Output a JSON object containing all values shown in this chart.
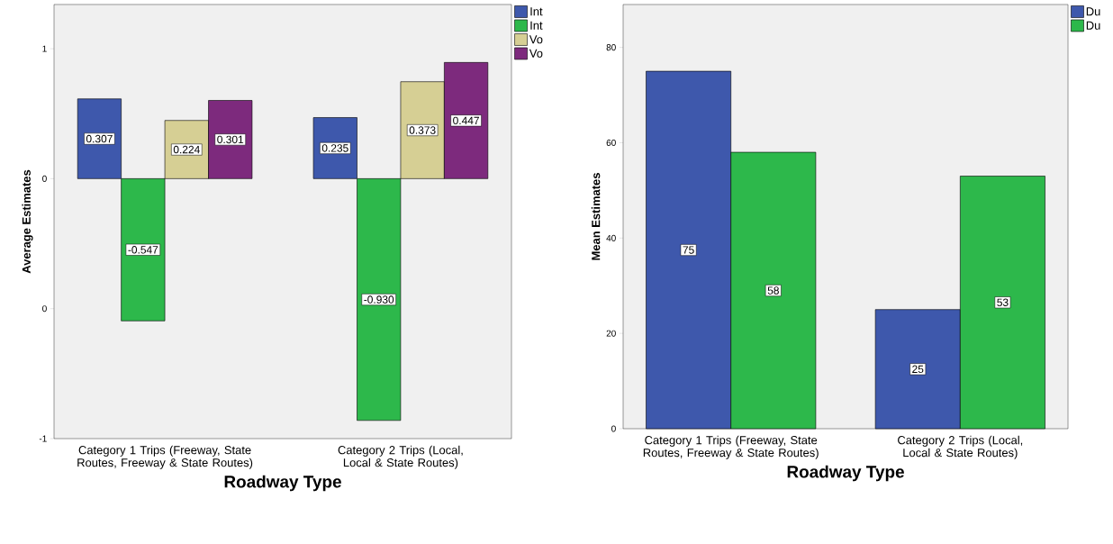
{
  "chart_data": [
    {
      "type": "bar",
      "categories": [
        "Category 1 Trips (Freeway, State Routes, Freeway & State Routes)",
        "Category 2 Trips (Local, Local & State Routes)"
      ],
      "series": [
        {
          "name": "Int",
          "color": "#3e58ac",
          "values": [
            0.307,
            0.235
          ],
          "value_labels": [
            "0.307",
            "0.235"
          ]
        },
        {
          "name": "Int",
          "color": "#2db84b",
          "values": [
            -0.547,
            -0.93
          ],
          "value_labels": [
            "-0.547",
            "-0.930"
          ]
        },
        {
          "name": "Vo",
          "color": "#d6cf94",
          "values": [
            0.224,
            0.373
          ],
          "value_labels": [
            "0.224",
            "0.373"
          ]
        },
        {
          "name": "Vo",
          "color": "#7d2a7d",
          "values": [
            0.301,
            0.447
          ],
          "value_labels": [
            "0.301",
            "0.447"
          ]
        }
      ],
      "xlabel": "Roadway Type",
      "ylabel": "Average Estimates",
      "ylim": [
        -1,
        0.67
      ],
      "yticks": [
        {
          "value": 0.5,
          "label": "1"
        },
        0,
        {
          "value": -0.5,
          "label": "0"
        },
        -1
      ],
      "legend": "top right",
      "grid": false
    },
    {
      "type": "bar",
      "categories": [
        "Category 1 Trips (Freeway, State Routes, Freeway & State Routes)",
        "Category 2 Trips (Local, Local & State Routes)"
      ],
      "series": [
        {
          "name": "Du",
          "color": "#3e58ac",
          "values": [
            75,
            25
          ],
          "value_labels": [
            "75",
            "25"
          ]
        },
        {
          "name": "Du",
          "color": "#2db84b",
          "values": [
            58,
            53
          ],
          "value_labels": [
            "58",
            "53"
          ]
        }
      ],
      "xlabel": "Roadway Type",
      "ylabel": "Mean Estimates",
      "ylim": [
        0,
        89
      ],
      "yticks": [
        0,
        20,
        40,
        60,
        80
      ],
      "legend": "top right",
      "grid": false
    }
  ]
}
